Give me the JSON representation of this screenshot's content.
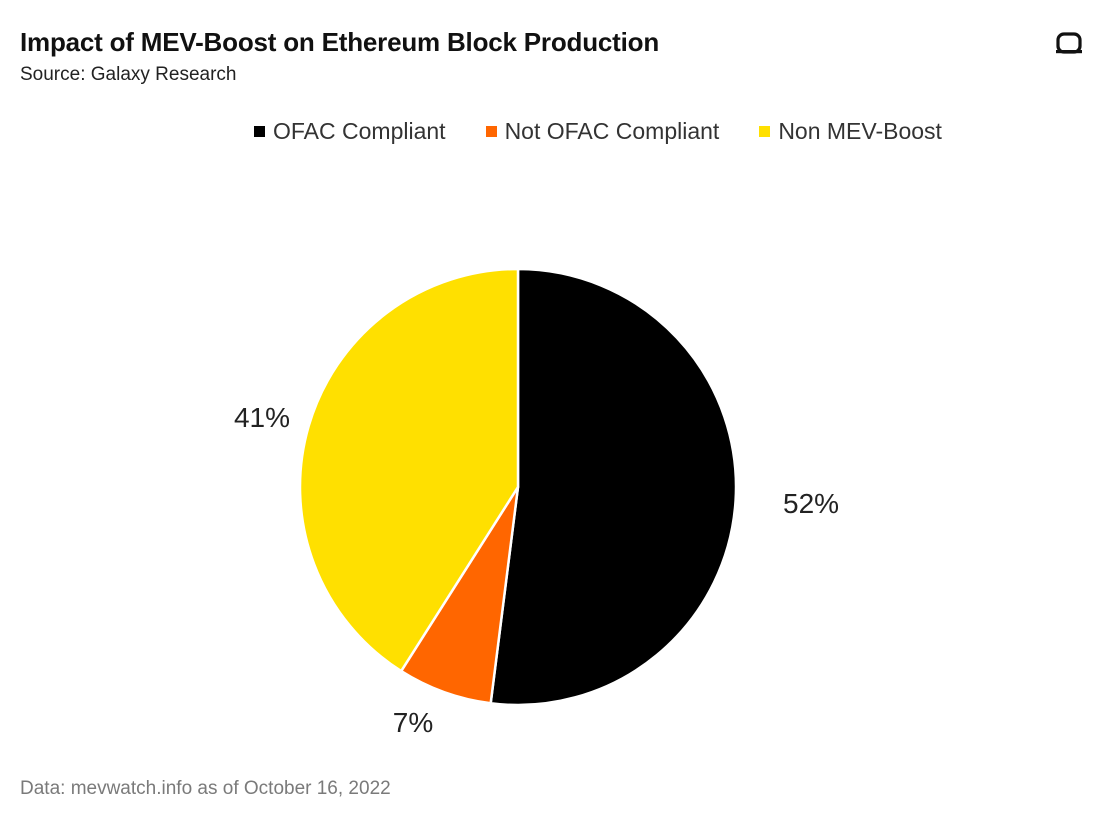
{
  "header": {
    "title": "Impact of MEV-Boost on Ethereum Block Production",
    "subtitle": "Source: Galaxy Research"
  },
  "footer": {
    "note": "Data: mevwatch.info as of October 16, 2022"
  },
  "brand": {
    "logo_icon": "galaxy-logo-icon",
    "logo_color": "#111111"
  },
  "chart_data": {
    "type": "pie",
    "title": "Impact of MEV-Boost on Ethereum Block Production",
    "subtitle": "Source: Galaxy Research",
    "legend_position": "top-center",
    "slices": [
      {
        "label": "OFAC Compliant",
        "value": 52,
        "display": "52%",
        "color": "#000000"
      },
      {
        "label": "Not OFAC Compliant",
        "value": 7,
        "display": "7%",
        "color": "#FF6600"
      },
      {
        "label": "Non MEV-Boost",
        "value": 41,
        "display": "41%",
        "color": "#FFE000"
      }
    ]
  }
}
